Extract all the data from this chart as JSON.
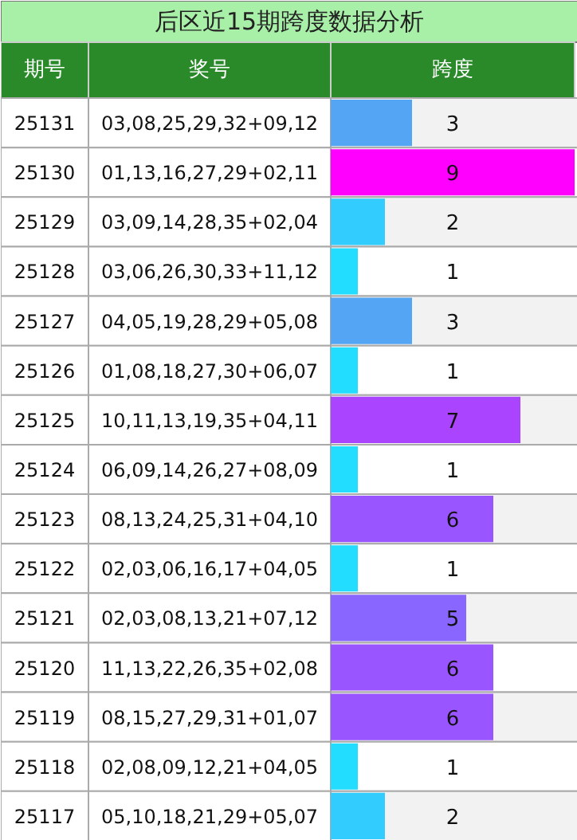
{
  "chart_data": {
    "type": "bar",
    "orientation": "horizontal",
    "title": "后区近15期跨度数据分析",
    "ylabel": "期号",
    "xlabel": "跨度",
    "categories": [
      "25131",
      "25130",
      "25129",
      "25128",
      "25127",
      "25126",
      "25125",
      "25124",
      "25123",
      "25122",
      "25121",
      "25120",
      "25119",
      "25118",
      "25117"
    ],
    "values": [
      3,
      9,
      2,
      1,
      3,
      1,
      7,
      1,
      6,
      1,
      5,
      6,
      6,
      1,
      2
    ],
    "colors": [
      "#55a5f5",
      "#ff00ff",
      "#33ccff",
      "#22ddff",
      "#55a5f5",
      "#22ddff",
      "#aa44ff",
      "#22ddff",
      "#9955ff",
      "#22ddff",
      "#8866ff",
      "#9955ff",
      "#9955ff",
      "#22ddff",
      "#33ccff"
    ],
    "xlim": [
      0,
      9
    ],
    "data_labels": true,
    "tick_labels": false,
    "annotations": [
      "奖号",
      "03,08,25,29,32+09,12",
      "01,13,16,27,29+02,11",
      "03,09,14,28,35+02,04",
      "03,06,26,30,33+11,12",
      "04,05,19,28,29+05,08",
      "01,08,18,27,30+06,07",
      "10,11,13,19,35+04,11",
      "06,09,14,26,27+08,09",
      "08,13,24,25,31+04,10",
      "02,03,06,16,17+04,05",
      "02,03,08,13,21+07,12",
      "11,13,22,26,35+02,08",
      "08,15,27,29,31+01,07",
      "02,08,09,12,21+04,05",
      "05,10,18,21,29+05,07"
    ]
  }
}
